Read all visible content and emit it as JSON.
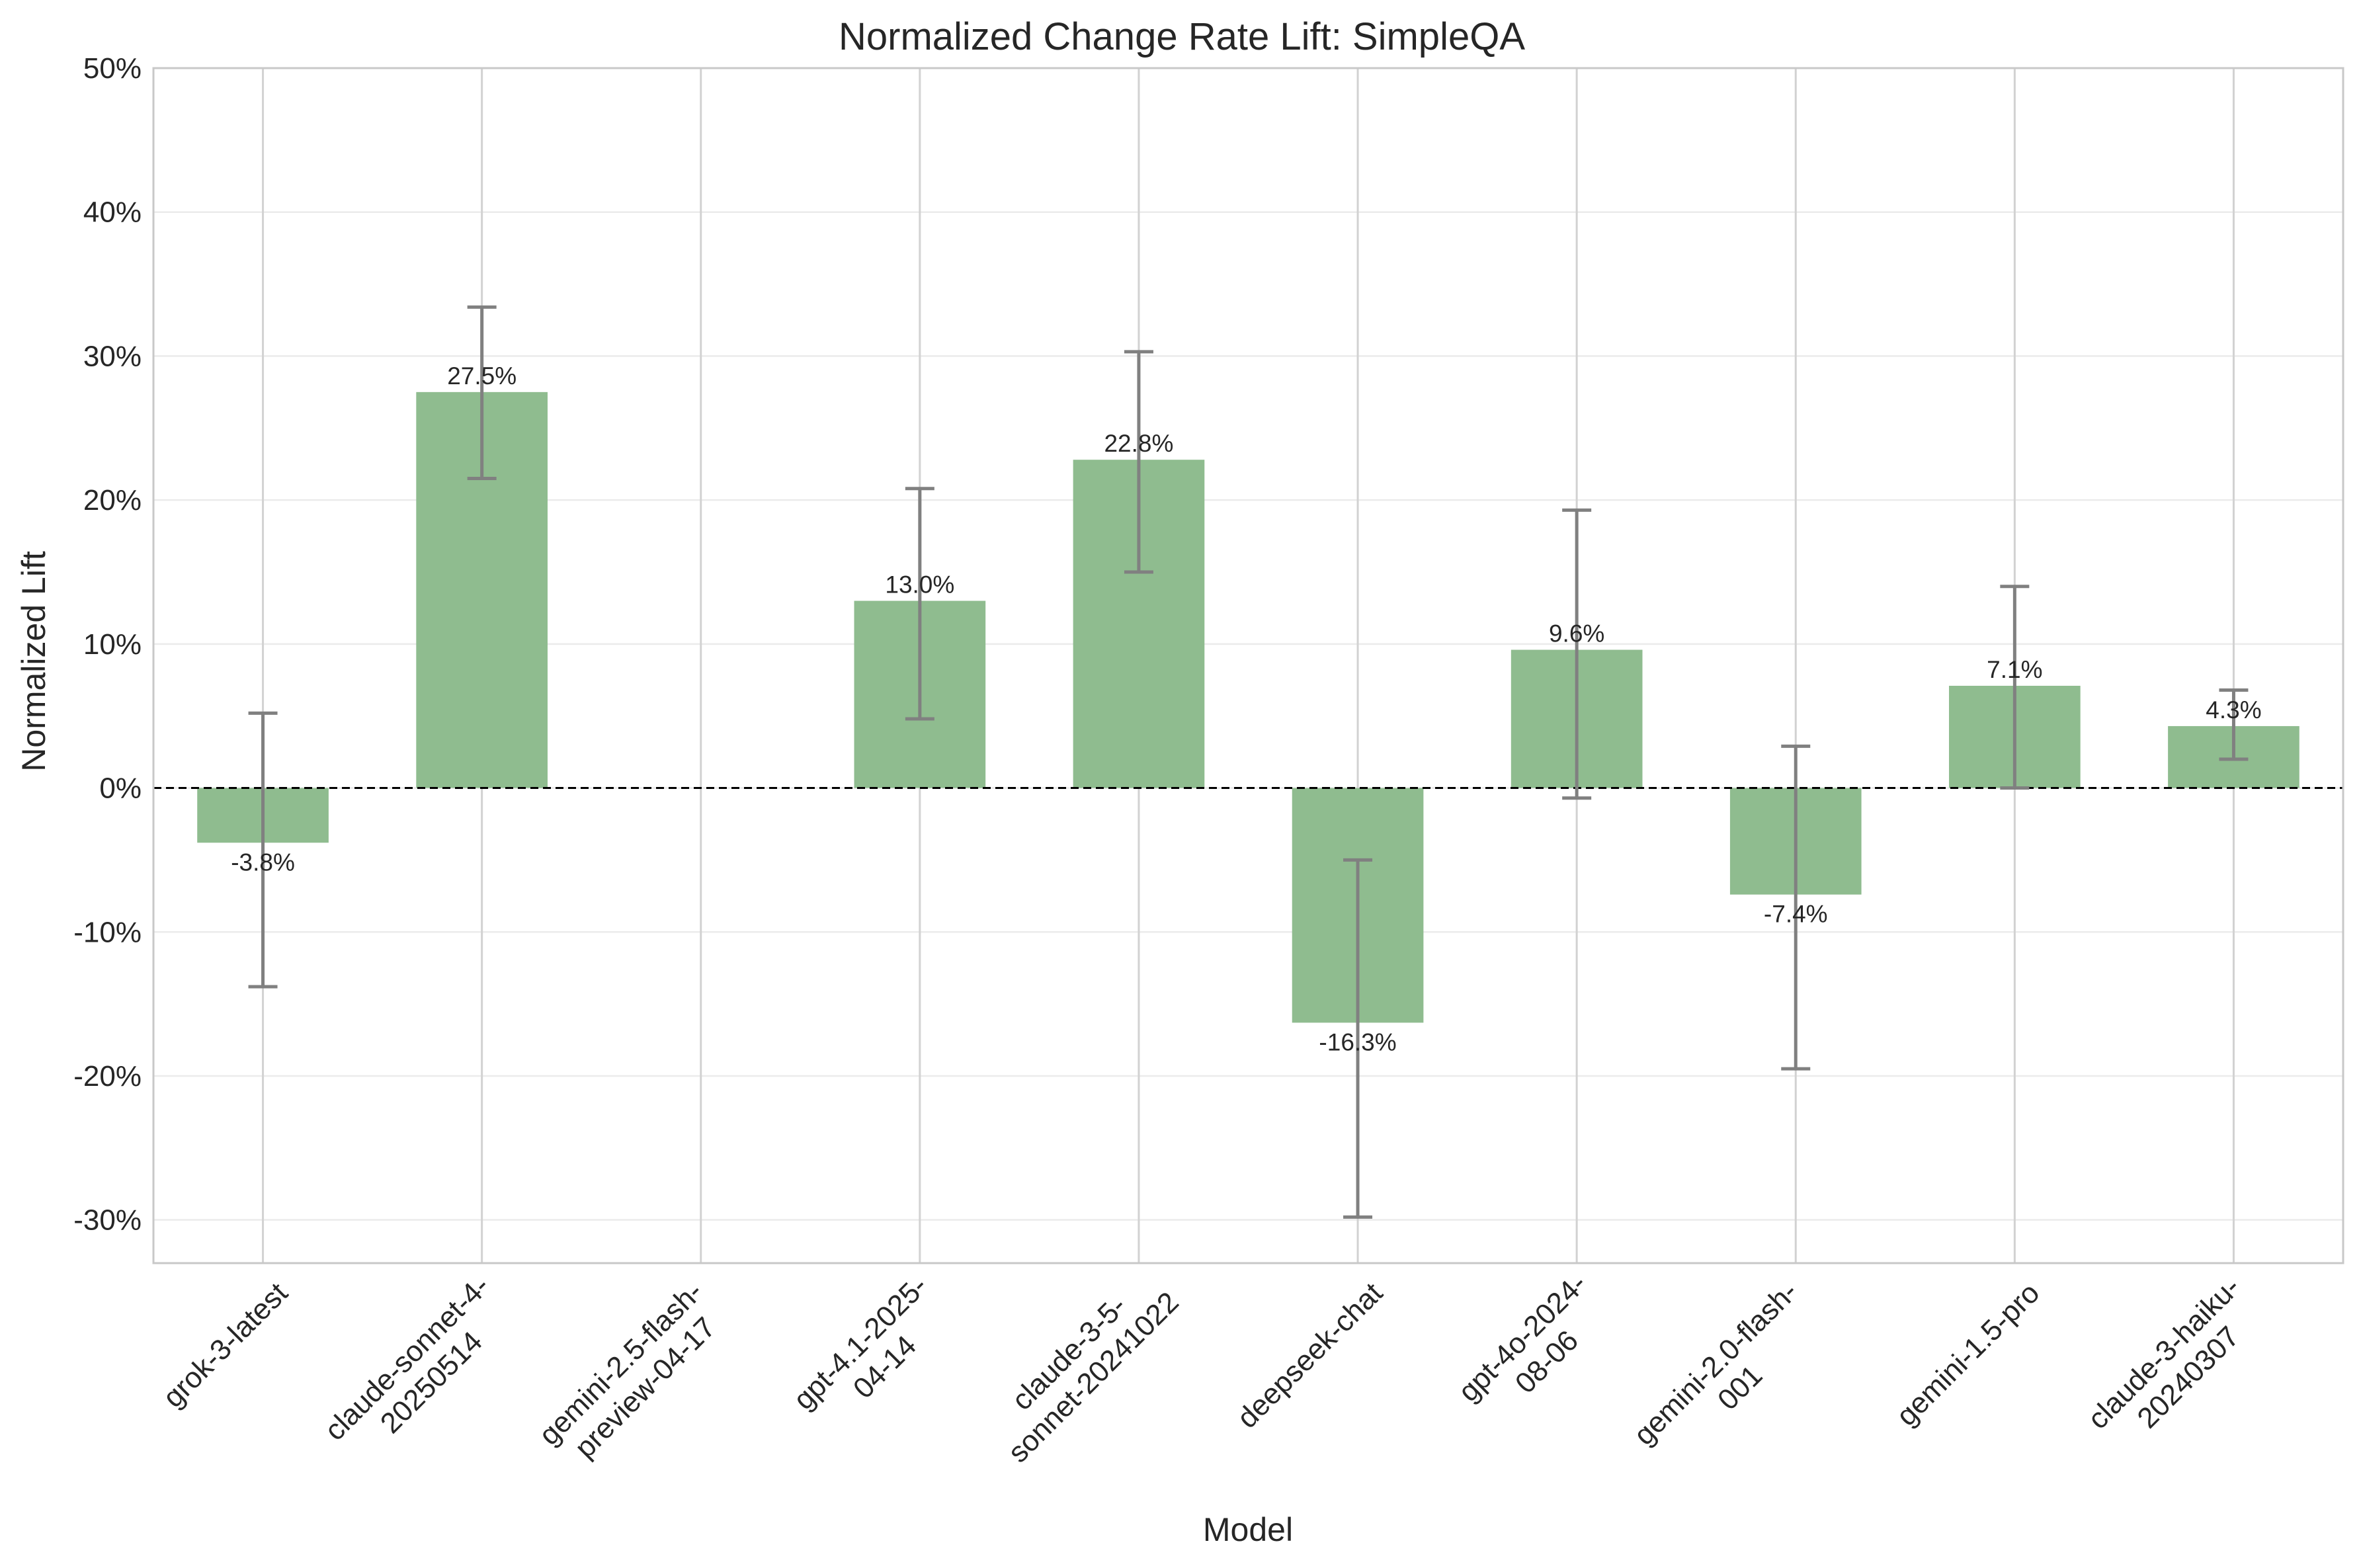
{
  "chart_data": {
    "type": "bar",
    "title": "Normalized Change Rate Lift: SimpleQA",
    "xlabel": "Model",
    "ylabel": "Normalized Lift",
    "ylim": [
      -33,
      50
    ],
    "yticks": [
      -30,
      -20,
      -10,
      0,
      10,
      20,
      30,
      40,
      50
    ],
    "ytick_labels": [
      "-30%",
      "-20%",
      "-10%",
      "0%",
      "10%",
      "20%",
      "30%",
      "40%",
      "50%"
    ],
    "grid": true,
    "zero_line": "dashed",
    "bar_color": "#8fbc8f",
    "error_bar_color": "#808080",
    "categories": [
      {
        "lines": [
          "grok-3-latest"
        ]
      },
      {
        "lines": [
          "claude-sonnet-4-",
          "20250514"
        ]
      },
      {
        "lines": [
          "gemini-2.5-flash-",
          "preview-04-17"
        ]
      },
      {
        "lines": [
          "gpt-4.1-2025-",
          "04-14"
        ]
      },
      {
        "lines": [
          "claude-3-5-",
          "sonnet-20241022"
        ]
      },
      {
        "lines": [
          "deepseek-chat"
        ]
      },
      {
        "lines": [
          "gpt-4o-2024-",
          "08-06"
        ]
      },
      {
        "lines": [
          "gemini-2.0-flash-",
          "001"
        ]
      },
      {
        "lines": [
          "gemini-1.5-pro"
        ]
      },
      {
        "lines": [
          "claude-3-haiku-",
          "20240307"
        ]
      }
    ],
    "values": [
      -3.8,
      27.5,
      null,
      13.0,
      22.8,
      -16.3,
      9.6,
      -7.4,
      7.1,
      4.3
    ],
    "value_labels": [
      "-3.8%",
      "27.5%",
      "",
      "13.0%",
      "22.8%",
      "-16.3%",
      "9.6%",
      "-7.4%",
      "7.1%",
      "4.3%"
    ],
    "error_low": [
      -13.8,
      21.5,
      null,
      4.8,
      15.0,
      -29.8,
      -0.7,
      -19.5,
      0.0,
      2.0
    ],
    "error_high": [
      5.2,
      33.4,
      null,
      20.8,
      30.3,
      -5.0,
      19.3,
      2.9,
      14.0,
      6.8
    ]
  }
}
